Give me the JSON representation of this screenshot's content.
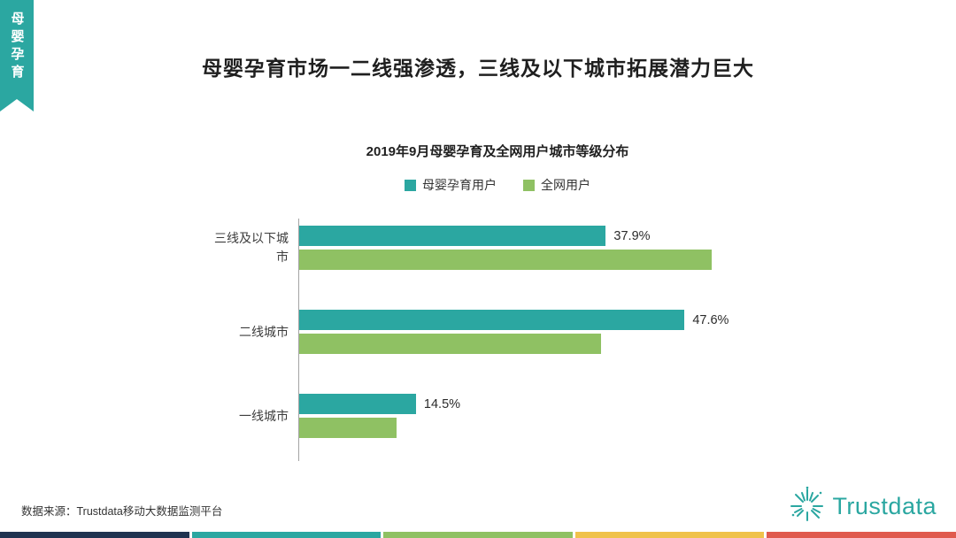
{
  "side_tab": {
    "label": "母婴孕育",
    "color": "#2BA7A1"
  },
  "header": {
    "title": "母婴孕育市场一二线强渗透，三线及以下城市拓展潜力巨大"
  },
  "chart": {
    "title": "2019年9月母婴孕育及全网用户城市等级分布"
  },
  "chart_data": {
    "type": "bar",
    "orientation": "horizontal",
    "title": "2019年9月母婴孕育及全网用户城市等级分布",
    "categories": [
      "三线及以下城市",
      "二线城市",
      "一线城市"
    ],
    "series": [
      {
        "name": "母婴孕育用户",
        "color": "#2BA7A1",
        "values": [
          37.9,
          47.6,
          14.5
        ],
        "labels": [
          "37.9%",
          "47.6%",
          "14.5%"
        ]
      },
      {
        "name": "全网用户",
        "color": "#8FC163",
        "values": [
          50.9,
          37.3,
          12.1
        ],
        "labels": [
          "",
          "",
          ""
        ]
      }
    ],
    "xlim": [
      0,
      60
    ],
    "grid": false,
    "legend_position": "top",
    "note": "only 母婴孕育用户 series shows data labels"
  },
  "footer": {
    "source": "数据来源：Trustdata移动大数据监测平台",
    "logo_text": "Trustdata"
  },
  "bottom_stripe": {
    "colors": [
      "#1F3350",
      "#2BA7A1",
      "#8FC163",
      "#F0C24B",
      "#E05A4E"
    ]
  },
  "palette": {
    "teal": "#2BA7A1",
    "green": "#8FC163"
  }
}
